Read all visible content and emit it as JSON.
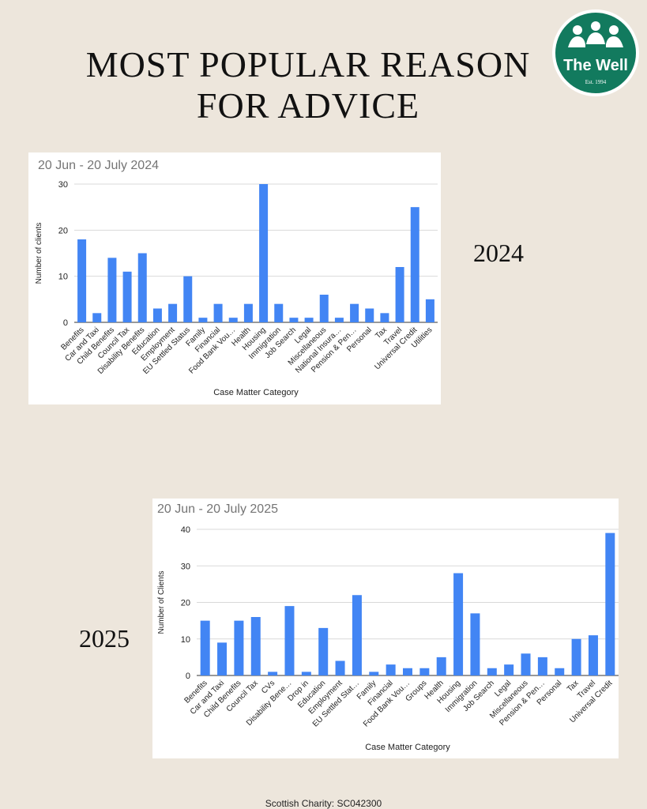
{
  "page": {
    "title_line1": "MOST POPULAR REASON",
    "title_line2": "FOR ADVICE",
    "footer": "Scottish Charity: SC042300",
    "logo": {
      "name": "The Well",
      "tagline": "Est. 1994",
      "color": "#127a5e"
    },
    "year_label_2024": "2024",
    "year_label_2025": "2025"
  },
  "chart_data": [
    {
      "type": "bar",
      "title": "20 Jun - 20 July 2024",
      "xlabel": "Case Matter Category",
      "ylabel": "Number of clients",
      "ylim": [
        0,
        30
      ],
      "yticks": [
        0,
        10,
        20,
        30
      ],
      "grid": true,
      "color": "#4285f4",
      "categories": [
        "Benefits",
        "Car and Taxi",
        "Child Benefits",
        "Council Tax",
        "Disability Benefits",
        "Education",
        "Employment",
        "EU Settled Status",
        "Family",
        "Financial",
        "Food Bank Vou…",
        "Health",
        "Housing",
        "Immigration",
        "Job Search",
        "Legal",
        "Miscellaneous",
        "National Insura…",
        "Pension & Pen…",
        "Personal",
        "Tax",
        "Travel",
        "Universal Credit",
        "Utilities"
      ],
      "values": [
        18,
        2,
        14,
        11,
        15,
        3,
        4,
        10,
        1,
        4,
        1,
        4,
        30,
        4,
        1,
        1,
        6,
        1,
        4,
        3,
        2,
        12,
        25,
        5
      ]
    },
    {
      "type": "bar",
      "title": "20 Jun - 20 July 2025",
      "xlabel": "Case Matter Category",
      "ylabel": "Number of Clients",
      "ylim": [
        0,
        40
      ],
      "yticks": [
        0,
        10,
        20,
        30,
        40
      ],
      "grid": true,
      "color": "#4285f4",
      "categories": [
        "Benefits",
        "Car and Taxi",
        "Child Benefits",
        "Council Tax",
        "CVs",
        "Disability Bene…",
        "Drop in",
        "Education",
        "Employment",
        "EU Settled Stat…",
        "Family",
        "Financial",
        "Food Bank Vou…",
        "Groups",
        "Health",
        "Housing",
        "Immigration",
        "Job Search",
        "Legal",
        "Miscellaneous",
        "Pension & Pen…",
        "Personal",
        "Tax",
        "Travel",
        "Universal Credit"
      ],
      "values": [
        15,
        9,
        15,
        16,
        1,
        19,
        1,
        13,
        4,
        22,
        1,
        3,
        2,
        2,
        5,
        28,
        17,
        2,
        3,
        6,
        5,
        2,
        10,
        11,
        39
      ]
    }
  ]
}
